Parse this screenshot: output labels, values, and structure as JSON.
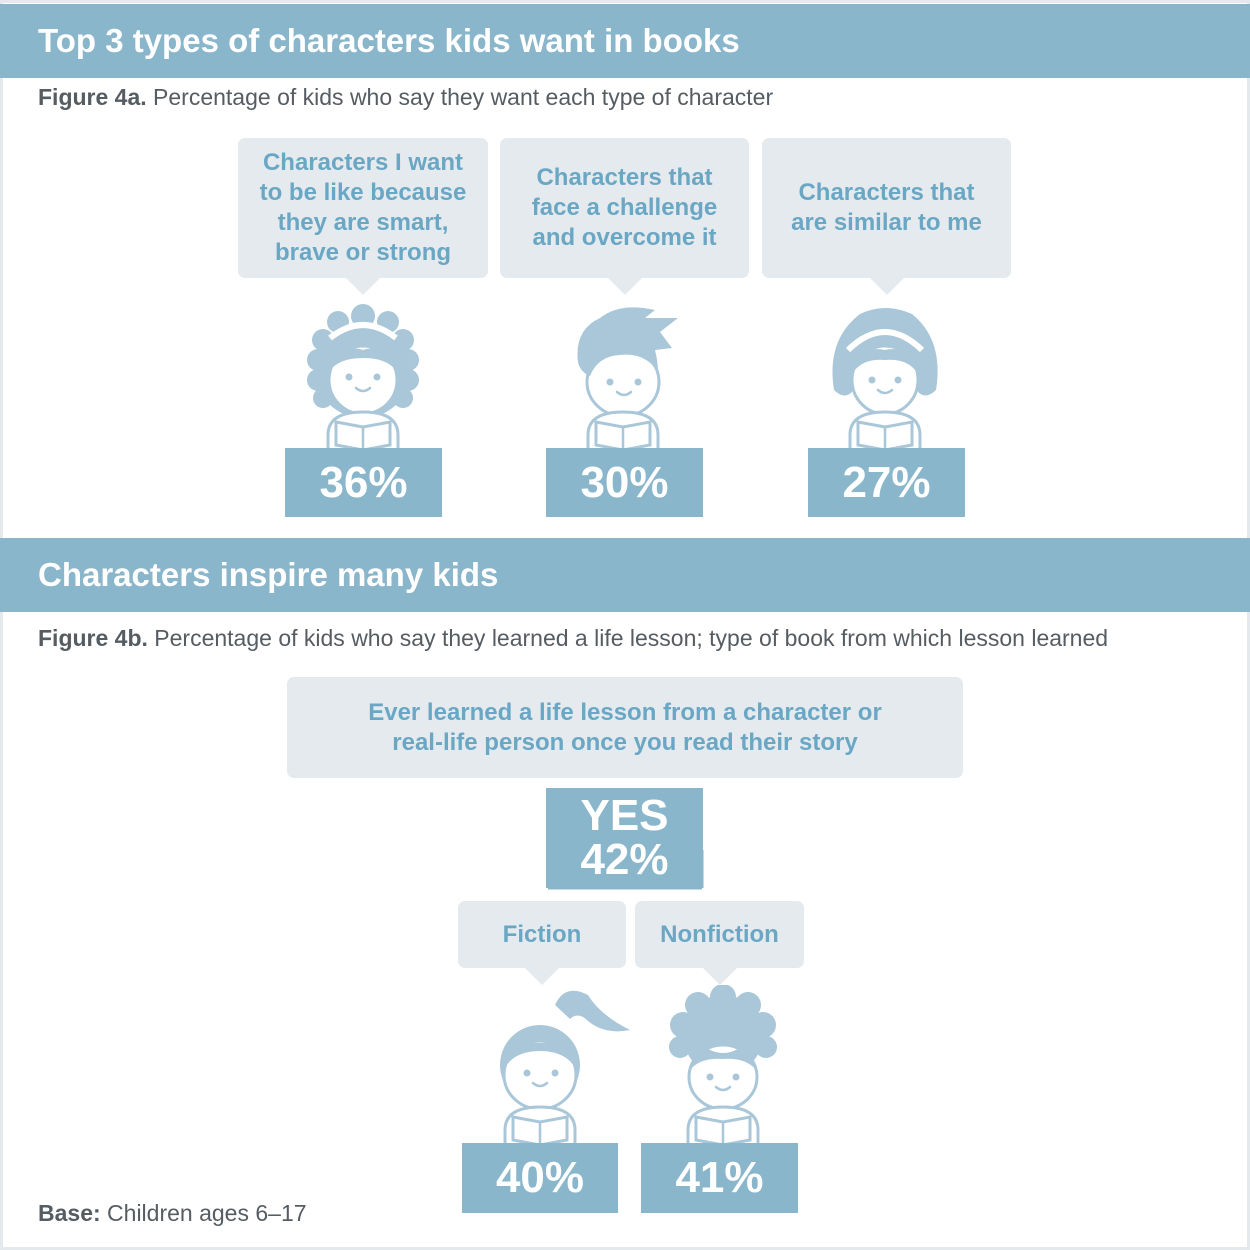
{
  "section1": {
    "title": "Top 3 types of characters kids want in books",
    "figure_label": "Figure 4a.",
    "figure_caption": "Percentage of kids who say they want each type of character"
  },
  "section2": {
    "title": "Characters inspire many kids",
    "figure_label": "Figure 4b.",
    "figure_caption": "Percentage of kids who say they learned a life lesson; type of book from which lesson learned",
    "question": "Ever learned a life lesson from a character or\nreal-life person once you read their story",
    "yes_label": "YES",
    "yes_value": "42%"
  },
  "footer": {
    "base_label": "Base:",
    "base_text": "Children ages 6–17"
  },
  "colors": {
    "band": "#8ab6cc",
    "bubble": "#e5eaee",
    "bubble_text": "#6aa7c4",
    "kid": "#a9c7d8"
  },
  "chart_data": [
    {
      "type": "bar",
      "title": "Top 3 types of characters kids want in books",
      "categories": [
        "Characters I want\nto be like because\nthey are smart,\nbrave or strong",
        "Characters that\nface a challenge\nand overcome it",
        "Characters that\nare similar to me"
      ],
      "values": [
        36,
        30,
        27
      ],
      "value_labels": [
        "36%",
        "30%",
        "27%"
      ],
      "unit": "%"
    },
    {
      "type": "bar",
      "title": "Characters inspire many kids",
      "categories": [
        "Fiction",
        "Nonfiction"
      ],
      "values": [
        40,
        41
      ],
      "value_labels": [
        "40%",
        "41%"
      ],
      "unit": "%"
    }
  ]
}
